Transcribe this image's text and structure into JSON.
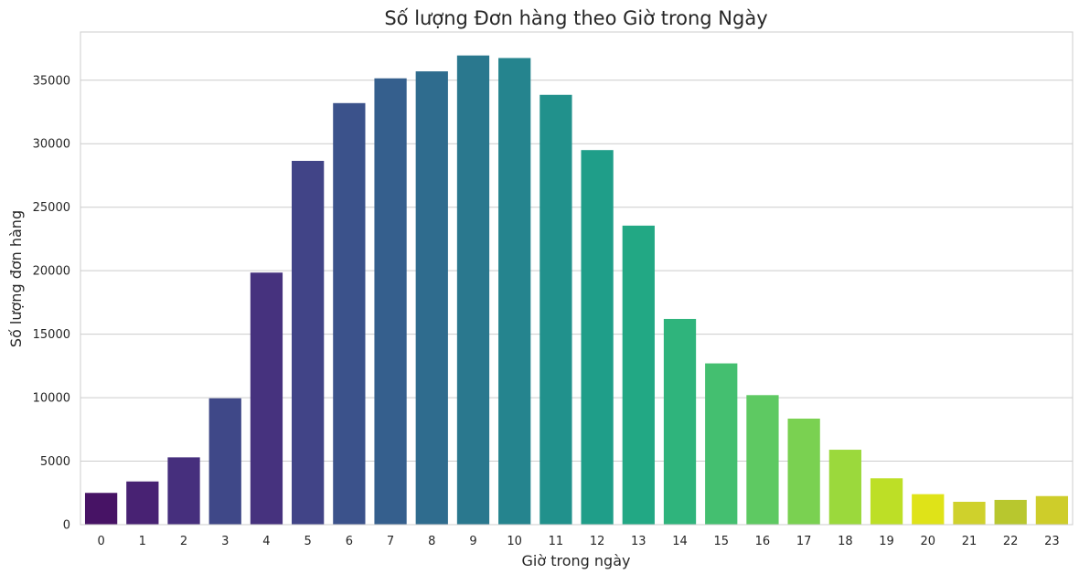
{
  "chart_data": {
    "type": "bar",
    "title": "Số lượng Đơn hàng theo Giờ trong Ngày",
    "xlabel": "Giờ trong ngày",
    "ylabel": "Số lượng đơn hàng",
    "categories": [
      "0",
      "1",
      "2",
      "3",
      "4",
      "5",
      "6",
      "7",
      "8",
      "9",
      "10",
      "11",
      "12",
      "13",
      "14",
      "15",
      "16",
      "17",
      "18",
      "19",
      "20",
      "21",
      "22",
      "23"
    ],
    "values": [
      2500,
      3400,
      5300,
      9950,
      19850,
      28650,
      33200,
      35150,
      35700,
      36950,
      36750,
      33850,
      29500,
      23550,
      16200,
      12700,
      10200,
      8350,
      5900,
      3650,
      2400,
      1800,
      1950,
      2250
    ],
    "ylim": [
      0,
      38800
    ],
    "yticks": [
      0,
      5000,
      10000,
      15000,
      20000,
      25000,
      30000,
      35000
    ],
    "grid": "horizontal",
    "palette": [
      "#471365",
      "#482273",
      "#462f7d",
      "#3f4888",
      "#46327e",
      "#414487",
      "#3b528b",
      "#355f8d",
      "#2f6c8e",
      "#2a788e",
      "#25848e",
      "#21918c",
      "#1f9e89",
      "#22a884",
      "#2fb47c",
      "#44bf70",
      "#5ec962",
      "#7ad151",
      "#9bd93c",
      "#bddf26",
      "#dfe318",
      "#cfd12c",
      "#b8c72e",
      "#cecd2a"
    ]
  }
}
